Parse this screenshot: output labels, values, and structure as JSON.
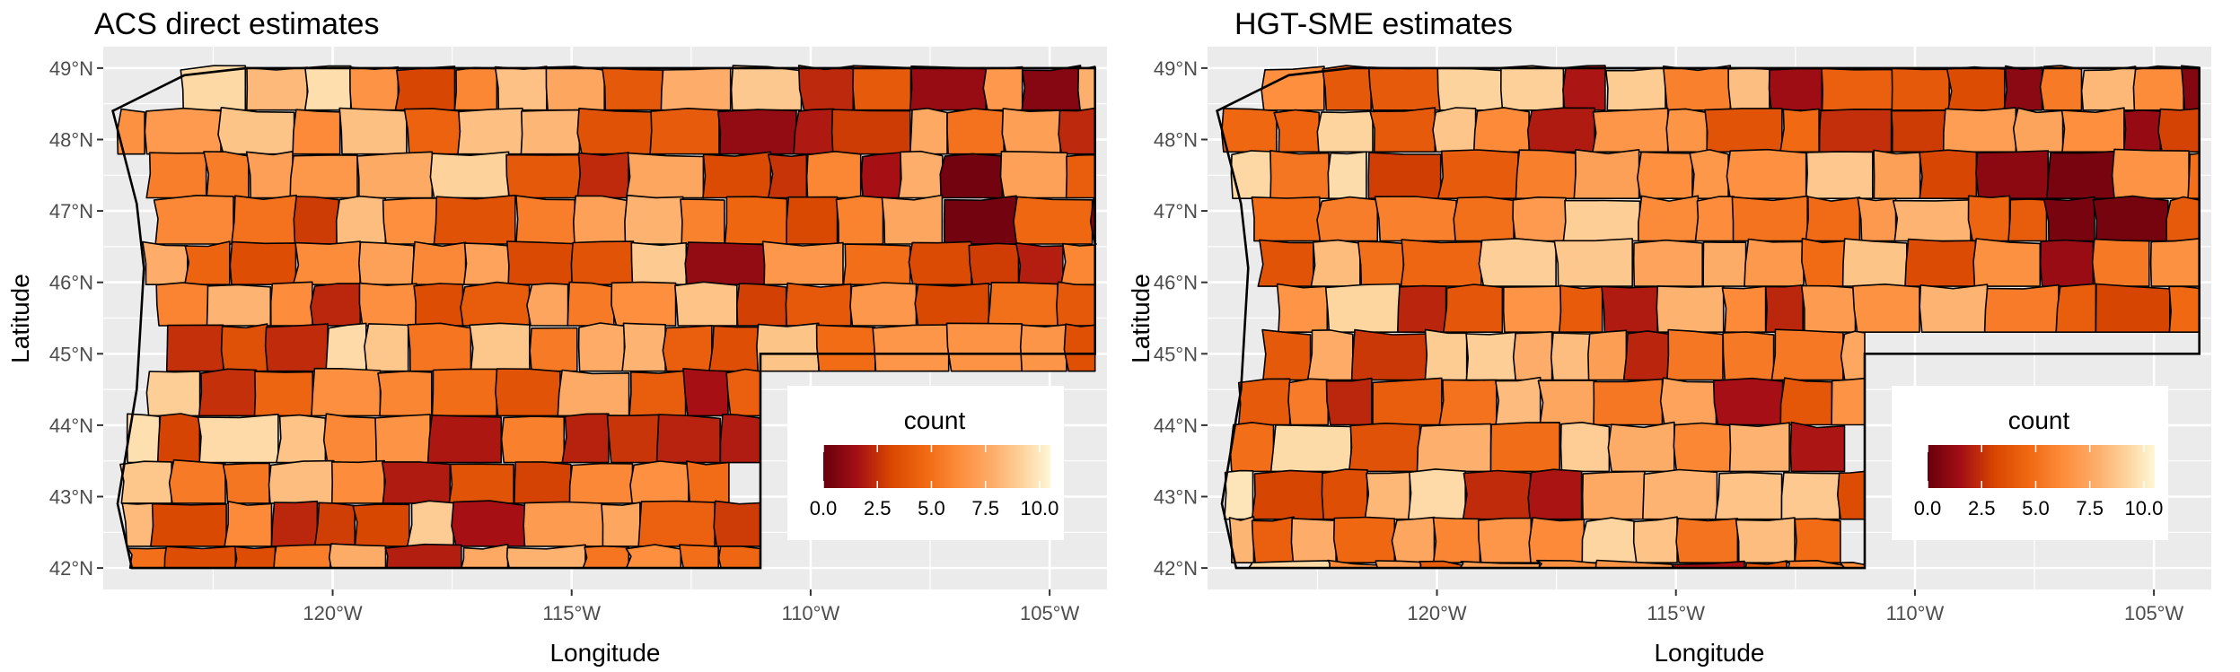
{
  "figure": {
    "panels": [
      {
        "title": "ACS direct estimates",
        "fill_seed": 7,
        "chart_data": {
          "type": "choropleth",
          "title": "ACS direct estimates",
          "xlabel": "Longitude",
          "ylabel": "Latitude",
          "x_ticks": [
            {
              "value": -120,
              "label": "120°W"
            },
            {
              "value": -115,
              "label": "115°W"
            },
            {
              "value": -110,
              "label": "110°W"
            },
            {
              "value": -105,
              "label": "105°W"
            }
          ],
          "y_ticks": [
            {
              "value": 42,
              "label": "42°N"
            },
            {
              "value": 43,
              "label": "43°N"
            },
            {
              "value": 44,
              "label": "44°N"
            },
            {
              "value": 45,
              "label": "45°N"
            },
            {
              "value": 46,
              "label": "46°N"
            },
            {
              "value": 47,
              "label": "47°N"
            },
            {
              "value": 48,
              "label": "48°N"
            },
            {
              "value": 49,
              "label": "49°N"
            }
          ],
          "xlim": [
            -124.8,
            -103.8
          ],
          "ylim": [
            41.7,
            49.3
          ],
          "legend": {
            "title": "count",
            "range": [
              0,
              10.5
            ],
            "ticks": [
              "0.0",
              "2.5",
              "5.0",
              "7.5",
              "10.0"
            ],
            "position": "bottom-right inside"
          },
          "highlight_region": {
            "lon": [
              -107.6,
              -106.0
            ],
            "lat": [
              46.8,
              47.6
            ],
            "value": 0.3
          }
        }
      },
      {
        "title": "HGT-SME estimates",
        "fill_seed": 23,
        "chart_data": {
          "type": "choropleth",
          "title": "HGT-SME estimates",
          "xlabel": "Longitude",
          "ylabel": "Latitude",
          "x_ticks": [
            {
              "value": -120,
              "label": "120°W"
            },
            {
              "value": -115,
              "label": "115°W"
            },
            {
              "value": -110,
              "label": "110°W"
            },
            {
              "value": -105,
              "label": "105°W"
            }
          ],
          "y_ticks": [
            {
              "value": 42,
              "label": "42°N"
            },
            {
              "value": 43,
              "label": "43°N"
            },
            {
              "value": 44,
              "label": "44°N"
            },
            {
              "value": 45,
              "label": "45°N"
            },
            {
              "value": 46,
              "label": "46°N"
            },
            {
              "value": 47,
              "label": "47°N"
            },
            {
              "value": 48,
              "label": "48°N"
            },
            {
              "value": 49,
              "label": "49°N"
            }
          ],
          "xlim": [
            -124.8,
            -103.8
          ],
          "ylim": [
            41.7,
            49.3
          ],
          "legend": {
            "title": "count",
            "range": [
              0,
              10.5
            ],
            "ticks": [
              "0.0",
              "2.5",
              "5.0",
              "7.5",
              "10.0"
            ],
            "position": "bottom-right inside"
          },
          "highlight_region": {
            "lon": [
              -107.6,
              -106.0
            ],
            "lat": [
              46.8,
              47.6
            ],
            "value": 0.4
          }
        }
      }
    ],
    "colors": {
      "panel_background": "#ebebeb",
      "gridline": "#ffffff",
      "county_border": "#000000",
      "scale": [
        "#67000d",
        "#a50f15",
        "#d94801",
        "#f16913",
        "#fd8d3c",
        "#fdae6b",
        "#fdd49e",
        "#fff7d6"
      ]
    }
  }
}
